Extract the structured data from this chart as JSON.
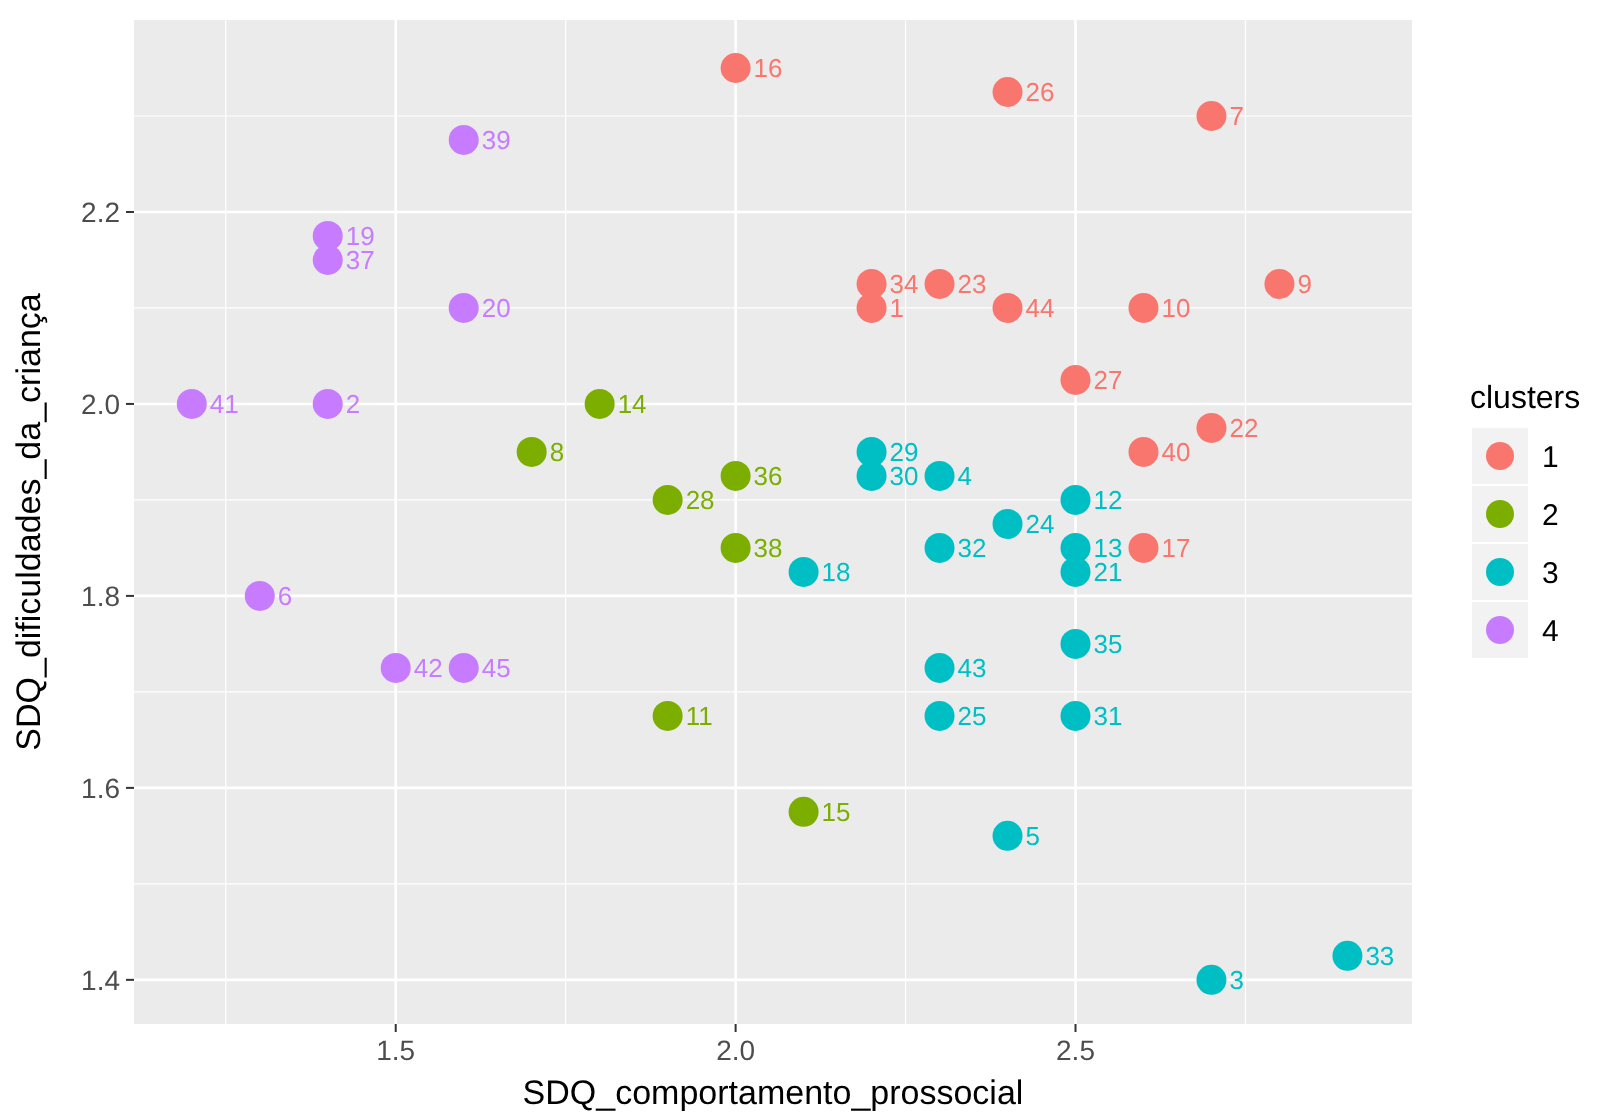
{
  "chart_data": {
    "type": "scatter",
    "xlabel": "SDQ_comportamento_prossocial",
    "ylabel": "SDQ_dificuldades_da_criança",
    "legend_title": "clusters",
    "legend": "right",
    "grid": true,
    "marker": "circle",
    "xlim": [
      1.115,
      2.995
    ],
    "xticks": [
      1.5,
      {
        "value": 2,
        "label": "2.0"
      },
      2.5
    ],
    "ylim": [
      1.354,
      2.4
    ],
    "yticks": [
      1.4,
      1.6,
      1.8,
      {
        "value": 2,
        "label": "2.0"
      },
      2.2
    ],
    "series": [
      {
        "name": "1",
        "color": "#f8766d",
        "x": [
          2.0,
          2.4,
          2.7,
          2.2,
          2.2,
          2.3,
          2.4,
          2.6,
          2.8,
          2.5,
          2.7,
          2.6,
          2.6
        ],
        "values": [
          2.35,
          2.325,
          2.3,
          2.125,
          2.1,
          2.125,
          2.1,
          2.1,
          2.125,
          2.025,
          1.975,
          1.95,
          1.85
        ]
      },
      {
        "name": "2",
        "color": "#7cae00",
        "x": [
          1.8,
          1.7,
          1.9,
          2.0,
          2.0,
          1.9,
          2.1
        ],
        "values": [
          2.0,
          1.95,
          1.9,
          1.925,
          1.85,
          1.675,
          1.575
        ]
      },
      {
        "name": "3",
        "color": "#00bfc4",
        "x": [
          2.2,
          2.2,
          2.3,
          2.4,
          2.5,
          2.3,
          2.1,
          2.5,
          2.5,
          2.5,
          2.3,
          2.3,
          2.5,
          2.4,
          2.7,
          2.9
        ],
        "values": [
          1.95,
          1.925,
          1.925,
          1.875,
          1.9,
          1.85,
          1.825,
          1.85,
          1.825,
          1.75,
          1.725,
          1.675,
          1.675,
          1.55,
          1.4,
          1.425
        ]
      },
      {
        "name": "4",
        "color": "#c77cff",
        "x": [
          1.6,
          1.4,
          1.4,
          1.6,
          1.2,
          1.4,
          1.3,
          1.5,
          1.6
        ],
        "values": [
          2.275,
          2.175,
          2.15,
          2.1,
          2.0,
          2.0,
          1.8,
          1.725,
          1.725
        ]
      }
    ],
    "annotations": [
      {
        "text": "16",
        "x": 2.0,
        "y": 2.35
      },
      {
        "text": "26",
        "x": 2.4,
        "y": 2.325
      },
      {
        "text": "7",
        "x": 2.7,
        "y": 2.3
      },
      {
        "text": "34",
        "x": 2.2,
        "y": 2.125
      },
      {
        "text": "1",
        "x": 2.2,
        "y": 2.1
      },
      {
        "text": "23",
        "x": 2.3,
        "y": 2.125
      },
      {
        "text": "44",
        "x": 2.4,
        "y": 2.1
      },
      {
        "text": "10",
        "x": 2.6,
        "y": 2.1
      },
      {
        "text": "9",
        "x": 2.8,
        "y": 2.125
      },
      {
        "text": "27",
        "x": 2.5,
        "y": 2.025
      },
      {
        "text": "22",
        "x": 2.7,
        "y": 1.975
      },
      {
        "text": "40",
        "x": 2.6,
        "y": 1.95
      },
      {
        "text": "17",
        "x": 2.6,
        "y": 1.85
      },
      {
        "text": "14",
        "x": 1.8,
        "y": 2.0
      },
      {
        "text": "8",
        "x": 1.7,
        "y": 1.95
      },
      {
        "text": "28",
        "x": 1.9,
        "y": 1.9
      },
      {
        "text": "36",
        "x": 2.0,
        "y": 1.925
      },
      {
        "text": "38",
        "x": 2.0,
        "y": 1.85
      },
      {
        "text": "11",
        "x": 1.9,
        "y": 1.675
      },
      {
        "text": "15",
        "x": 2.1,
        "y": 1.575
      },
      {
        "text": "29",
        "x": 2.2,
        "y": 1.95
      },
      {
        "text": "30",
        "x": 2.2,
        "y": 1.925
      },
      {
        "text": "4",
        "x": 2.3,
        "y": 1.925
      },
      {
        "text": "24",
        "x": 2.4,
        "y": 1.875
      },
      {
        "text": "12",
        "x": 2.5,
        "y": 1.9
      },
      {
        "text": "32",
        "x": 2.3,
        "y": 1.85
      },
      {
        "text": "18",
        "x": 2.1,
        "y": 1.825
      },
      {
        "text": "13",
        "x": 2.5,
        "y": 1.85
      },
      {
        "text": "21",
        "x": 2.5,
        "y": 1.825
      },
      {
        "text": "35",
        "x": 2.5,
        "y": 1.75
      },
      {
        "text": "43",
        "x": 2.3,
        "y": 1.725
      },
      {
        "text": "25",
        "x": 2.3,
        "y": 1.675
      },
      {
        "text": "31",
        "x": 2.5,
        "y": 1.675
      },
      {
        "text": "5",
        "x": 2.4,
        "y": 1.55
      },
      {
        "text": "3",
        "x": 2.7,
        "y": 1.4
      },
      {
        "text": "33",
        "x": 2.9,
        "y": 1.425
      },
      {
        "text": "39",
        "x": 1.6,
        "y": 2.275
      },
      {
        "text": "19",
        "x": 1.4,
        "y": 2.175
      },
      {
        "text": "37",
        "x": 1.4,
        "y": 2.15
      },
      {
        "text": "20",
        "x": 1.6,
        "y": 2.1
      },
      {
        "text": "41",
        "x": 1.2,
        "y": 2.0
      },
      {
        "text": "2",
        "x": 1.4,
        "y": 2.0
      },
      {
        "text": "6",
        "x": 1.3,
        "y": 1.8
      },
      {
        "text": "42",
        "x": 1.5,
        "y": 1.725
      },
      {
        "text": "45",
        "x": 1.6,
        "y": 1.725
      }
    ]
  }
}
